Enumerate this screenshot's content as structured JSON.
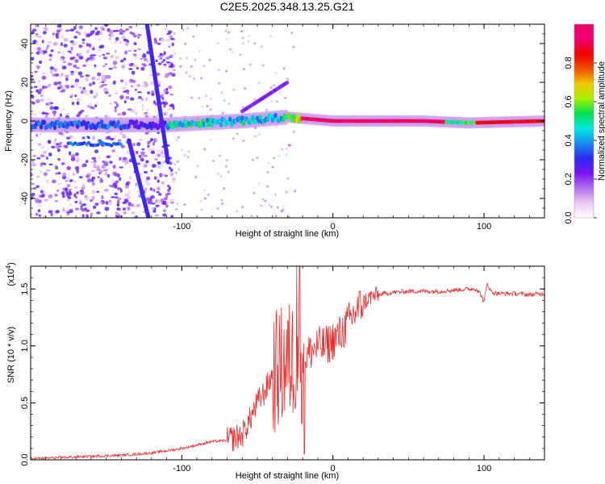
{
  "figure": {
    "title": "C2E5.2025.348.13.25.G21"
  },
  "chart_data": [
    {
      "type": "heatmap",
      "title": "C2E5.2025.348.13.25.G21",
      "xlabel": "Height of straight line (km)",
      "ylabel": "Frequency (Hz)",
      "xlim": [
        -200,
        140
      ],
      "ylim": [
        -50,
        50
      ],
      "x_ticks": [
        -100,
        0,
        100
      ],
      "y_ticks": [
        -40,
        -20,
        0,
        20,
        40
      ],
      "grid": false,
      "features": [
        {
          "name": "main-signal-band",
          "x": [
            -200,
            -135,
            -110,
            -60,
            -30,
            0,
            60,
            90,
            140
          ],
          "y": [
            -2,
            -2,
            -2,
            0,
            2,
            0,
            0,
            -1,
            0
          ],
          "level": 0.6
        },
        {
          "name": "diagonal-streak-1",
          "x": [
            -123,
            -109
          ],
          "y": [
            50,
            -22
          ],
          "level": 0.25
        },
        {
          "name": "diagonal-streak-2",
          "x": [
            -135,
            -122
          ],
          "y": [
            -10,
            -50
          ],
          "level": 0.25
        },
        {
          "name": "upper-branch",
          "x": [
            -60,
            -30
          ],
          "y": [
            5,
            20
          ],
          "level": 0.2
        },
        {
          "name": "strong-core",
          "x": [
            -20,
            75
          ],
          "y": [
            0,
            0
          ],
          "level": 0.95
        }
      ],
      "colorbar": {
        "label": "Normalized spectral amplitude",
        "ticks": [
          0.0,
          0.2,
          0.4,
          0.6,
          0.8
        ],
        "tick_labels": [
          "0.0",
          "0.2",
          "0.4",
          "0.6",
          "0.8"
        ],
        "range": [
          0,
          1
        ],
        "colors": [
          "#ffffff",
          "#e8c8f4",
          "#b070ec",
          "#7a14f0",
          "#2a2af0",
          "#1a8cf0",
          "#00e8e0",
          "#00e050",
          "#a8f000",
          "#f0c800",
          "#f05000",
          "#f00000",
          "#f00070",
          "#f0006e"
        ]
      }
    },
    {
      "type": "line",
      "xlabel": "Height of straight line (km)",
      "ylabel": "SNR (10 * v/v)",
      "scale_label": "(x10",
      "scale_exp": "4",
      "scale_close": ")",
      "xlim": [
        -200,
        140
      ],
      "ylim": [
        0,
        1.7
      ],
      "x_ticks": [
        -100,
        0,
        100
      ],
      "y_ticks": [
        0.0,
        0.5,
        1.0,
        1.5
      ],
      "y_tick_labels": [
        "0.0",
        "0.5",
        "1.0",
        "1.5"
      ],
      "line_color": "#e83030",
      "series": [
        {
          "name": "SNR",
          "x": [
            -200,
            -180,
            -160,
            -140,
            -120,
            -110,
            -100,
            -90,
            -80,
            -70,
            -60,
            -55,
            -50,
            -45,
            -40,
            -35,
            -30,
            -25,
            -20,
            -15,
            -10,
            -5,
            0,
            5,
            10,
            15,
            20,
            25,
            30,
            40,
            50,
            60,
            70,
            80,
            90,
            95,
            98,
            100,
            102,
            105,
            110,
            120,
            130,
            140
          ],
          "y": [
            0.01,
            0.02,
            0.03,
            0.04,
            0.06,
            0.08,
            0.1,
            0.13,
            0.16,
            0.17,
            0.22,
            0.35,
            0.5,
            0.6,
            0.75,
            0.8,
            0.85,
            0.9,
            0.85,
            0.95,
            1.0,
            1.0,
            1.05,
            1.1,
            1.2,
            1.3,
            1.38,
            1.43,
            1.45,
            1.47,
            1.48,
            1.48,
            1.48,
            1.49,
            1.5,
            1.5,
            1.45,
            1.38,
            1.55,
            1.47,
            1.46,
            1.46,
            1.45,
            1.46
          ]
        }
      ],
      "noise_amplitude": [
        {
          "x": [
            -200,
            -70
          ],
          "amp": 0.012
        },
        {
          "x": [
            -70,
            -40
          ],
          "amp": 0.12
        },
        {
          "x": [
            -40,
            -20
          ],
          "amp": 0.55
        },
        {
          "x": [
            -20,
            20
          ],
          "amp": 0.18
        },
        {
          "x": [
            20,
            30
          ],
          "amp": 0.08
        },
        {
          "x": [
            30,
            140
          ],
          "amp": 0.02
        }
      ],
      "spikes": [
        {
          "x": -24,
          "y": 1.7
        },
        {
          "x": -22,
          "y": 1.7
        },
        {
          "x": -19,
          "y": 0.05
        }
      ]
    }
  ]
}
